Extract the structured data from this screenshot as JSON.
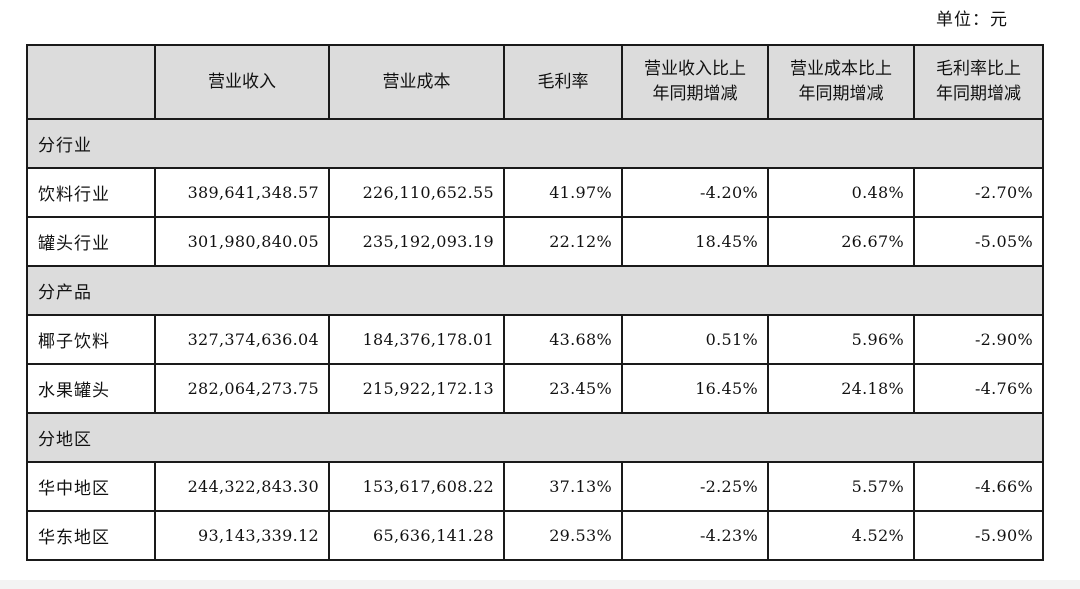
{
  "unit_label": "单位：元",
  "headers": {
    "corner": "",
    "revenue": "营业收入",
    "cost": "营业成本",
    "gross_margin": "毛利率",
    "revenue_yoy_line1": "营业收入比上",
    "revenue_yoy_line2": "年同期增减",
    "cost_yoy_line1": "营业成本比上",
    "cost_yoy_line2": "年同期增减",
    "margin_yoy_line1": "毛利率比上",
    "margin_yoy_line2": "年同期增减"
  },
  "sections": [
    {
      "title": "分行业",
      "rows": [
        {
          "name": "饮料行业",
          "revenue": "389,641,348.57",
          "cost": "226,110,652.55",
          "gross_margin": "41.97%",
          "revenue_yoy": "-4.20%",
          "cost_yoy": "0.48%",
          "margin_yoy": "-2.70%"
        },
        {
          "name": "罐头行业",
          "revenue": "301,980,840.05",
          "cost": "235,192,093.19",
          "gross_margin": "22.12%",
          "revenue_yoy": "18.45%",
          "cost_yoy": "26.67%",
          "margin_yoy": "-5.05%"
        }
      ]
    },
    {
      "title": "分产品",
      "rows": [
        {
          "name": "椰子饮料",
          "revenue": "327,374,636.04",
          "cost": "184,376,178.01",
          "gross_margin": "43.68%",
          "revenue_yoy": "0.51%",
          "cost_yoy": "5.96%",
          "margin_yoy": "-2.90%"
        },
        {
          "name": "水果罐头",
          "revenue": "282,064,273.75",
          "cost": "215,922,172.13",
          "gross_margin": "23.45%",
          "revenue_yoy": "16.45%",
          "cost_yoy": "24.18%",
          "margin_yoy": "-4.76%"
        }
      ]
    },
    {
      "title": "分地区",
      "rows": [
        {
          "name": "华中地区",
          "revenue": "244,322,843.30",
          "cost": "153,617,608.22",
          "gross_margin": "37.13%",
          "revenue_yoy": "-2.25%",
          "cost_yoy": "5.57%",
          "margin_yoy": "-4.66%"
        },
        {
          "name": "华东地区",
          "revenue": "93,143,339.12",
          "cost": "65,636,141.28",
          "gross_margin": "29.53%",
          "revenue_yoy": "-4.23%",
          "cost_yoy": "4.52%",
          "margin_yoy": "-5.90%"
        }
      ]
    }
  ]
}
